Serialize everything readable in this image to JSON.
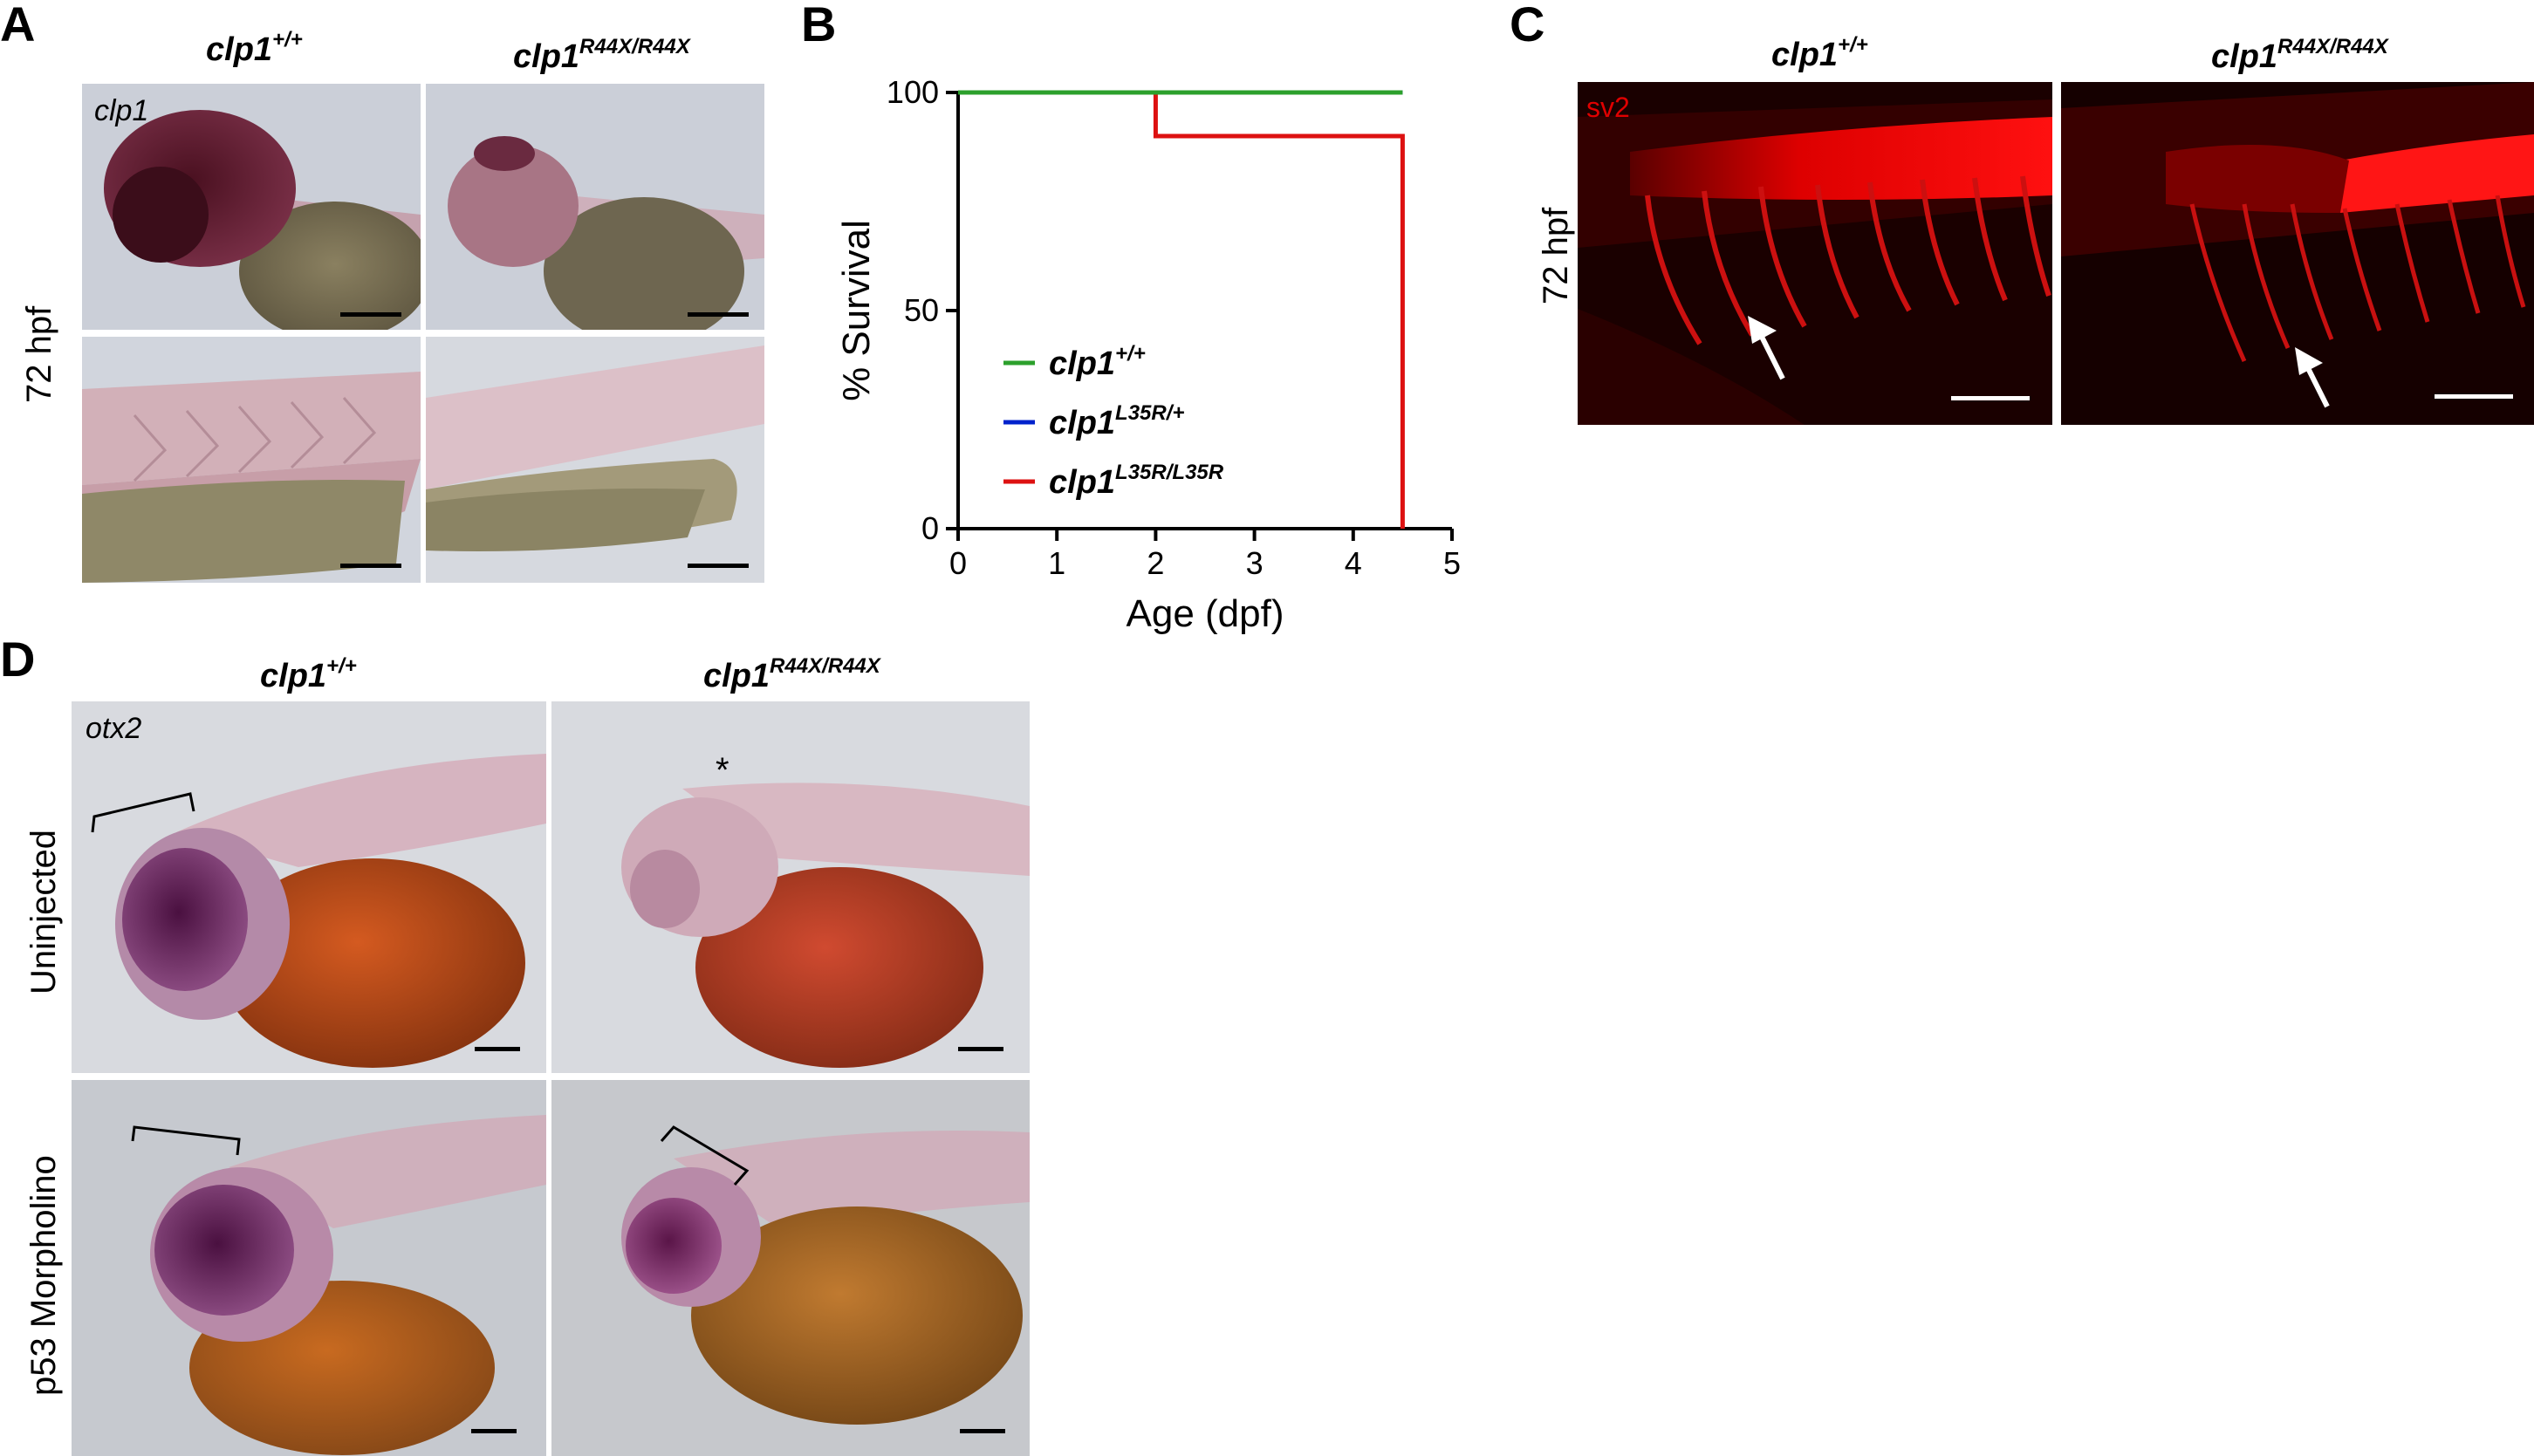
{
  "panels": {
    "A": {
      "label": "A",
      "col1": {
        "base": "clp1",
        "sup": "+/+"
      },
      "col2": {
        "base": "clp1",
        "sup": "R44X/R44X"
      },
      "row_label": "72 hpf",
      "gene": "clp1"
    },
    "B": {
      "label": "B"
    },
    "C": {
      "label": "C",
      "col1": {
        "base": "clp1",
        "sup": "+/+"
      },
      "col2": {
        "base": "clp1",
        "sup": "R44X/R44X"
      },
      "row_label": "72 hpf",
      "stain": "sv2"
    },
    "D": {
      "label": "D",
      "col1": {
        "base": "clp1",
        "sup": "+/+"
      },
      "col2": {
        "base": "clp1",
        "sup": "R44X/R44X"
      },
      "row1_label": "Uninjected",
      "row2_label": "p53 Morpholino",
      "gene": "otx2",
      "asterisk": "*"
    }
  },
  "chart_data": {
    "type": "line",
    "xlabel": "Age (dpf)",
    "ylabel": "% Survival",
    "xlim": [
      0,
      5
    ],
    "ylim": [
      0,
      100
    ],
    "xticks": [
      "0",
      "1",
      "2",
      "3",
      "4",
      "5"
    ],
    "yticks": [
      "0",
      "50",
      "100"
    ],
    "step": true,
    "legend_position": "lower-left",
    "series": [
      {
        "name": "clp1",
        "sup": "+/+",
        "color": "#2ca02c",
        "x": [
          0,
          4.5
        ],
        "y": [
          100,
          100
        ]
      },
      {
        "name": "clp1",
        "sup": "L35R/+",
        "color": "#0022cc",
        "x": [
          0,
          4.5
        ],
        "y": [
          100,
          100
        ]
      },
      {
        "name": "clp1",
        "sup": "L35R/L35R",
        "color": "#dd1111",
        "x": [
          0,
          2,
          2,
          4.5,
          4.5
        ],
        "y": [
          100,
          100,
          90,
          90,
          0
        ]
      }
    ]
  }
}
